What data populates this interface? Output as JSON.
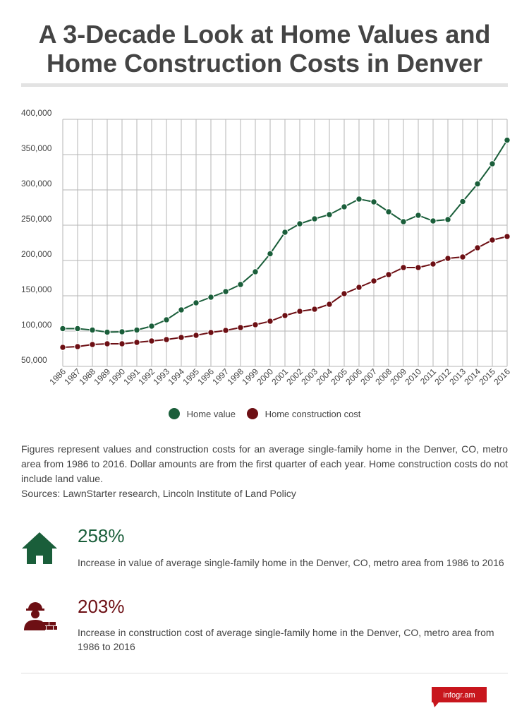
{
  "title_line1": "A 3-Decade Look at Home Values and",
  "title_line2": "Home Construction Costs in Denver",
  "colors": {
    "home_value": "#1a5e3a",
    "construction": "#6d0f14",
    "grid": "#b5b5b5",
    "text": "#444444"
  },
  "chart_data": {
    "type": "line",
    "x": [
      "1986",
      "1987",
      "1988",
      "1989",
      "1990",
      "1991",
      "1992",
      "1993",
      "1994",
      "1995",
      "1996",
      "1997",
      "1998",
      "1999",
      "2000",
      "2001",
      "2002",
      "2003",
      "2004",
      "2005",
      "2006",
      "2007",
      "2008",
      "2009",
      "2010",
      "2011",
      "2012",
      "2013",
      "2014",
      "2015",
      "2016"
    ],
    "y_ticks": [
      "400,000",
      "350,000",
      "300,000",
      "250,000",
      "200,000",
      "150,000",
      "100,000",
      "50,000"
    ],
    "ylim": [
      50000,
      400000
    ],
    "grid": true,
    "legend_position": "bottom",
    "series": [
      {
        "name": "Home value",
        "color": "#1a5e3a",
        "values": [
          103500,
          103500,
          101500,
          98500,
          99000,
          101500,
          107000,
          116000,
          130000,
          140000,
          148000,
          156000,
          166000,
          184000,
          209500,
          240000,
          252000,
          259000,
          265000,
          276000,
          287000,
          283000,
          269000,
          255000,
          264000,
          256000,
          258000,
          283500,
          308500,
          337000,
          370500
        ]
      },
      {
        "name": "Home construction cost",
        "color": "#6d0f14",
        "values": [
          77000,
          78000,
          81000,
          82000,
          82000,
          84000,
          86000,
          88000,
          91000,
          94000,
          98000,
          101000,
          105000,
          109000,
          114000,
          122000,
          128000,
          131000,
          138000,
          153000,
          162000,
          171000,
          180000,
          190000,
          190000,
          195000,
          203000,
          205000,
          218000,
          229000,
          234000
        ]
      }
    ]
  },
  "notes": {
    "body": "Figures represent values and construction costs for an average single-family home in the Denver, CO, metro area from 1986 to 2016. Dollar amounts are from the first quarter of each year. Home construction costs do not include land value.",
    "sources": "Sources: LawnStarter research, Lincoln Institute of Land Policy"
  },
  "stats": [
    {
      "value": "258%",
      "description": "Increase in value of average single-family home in the Denver, CO, metro area from 1986 to 2016",
      "icon": "house-icon",
      "color": "#1a5e3a"
    },
    {
      "value": "203%",
      "description": "Increase in construction cost of average single-family home in the Denver, CO, metro area from 1986 to 2016",
      "icon": "construction-worker-icon",
      "color": "#6d0f14"
    }
  ],
  "badge": {
    "label": "infogr.am",
    "color": "#c8161d"
  }
}
